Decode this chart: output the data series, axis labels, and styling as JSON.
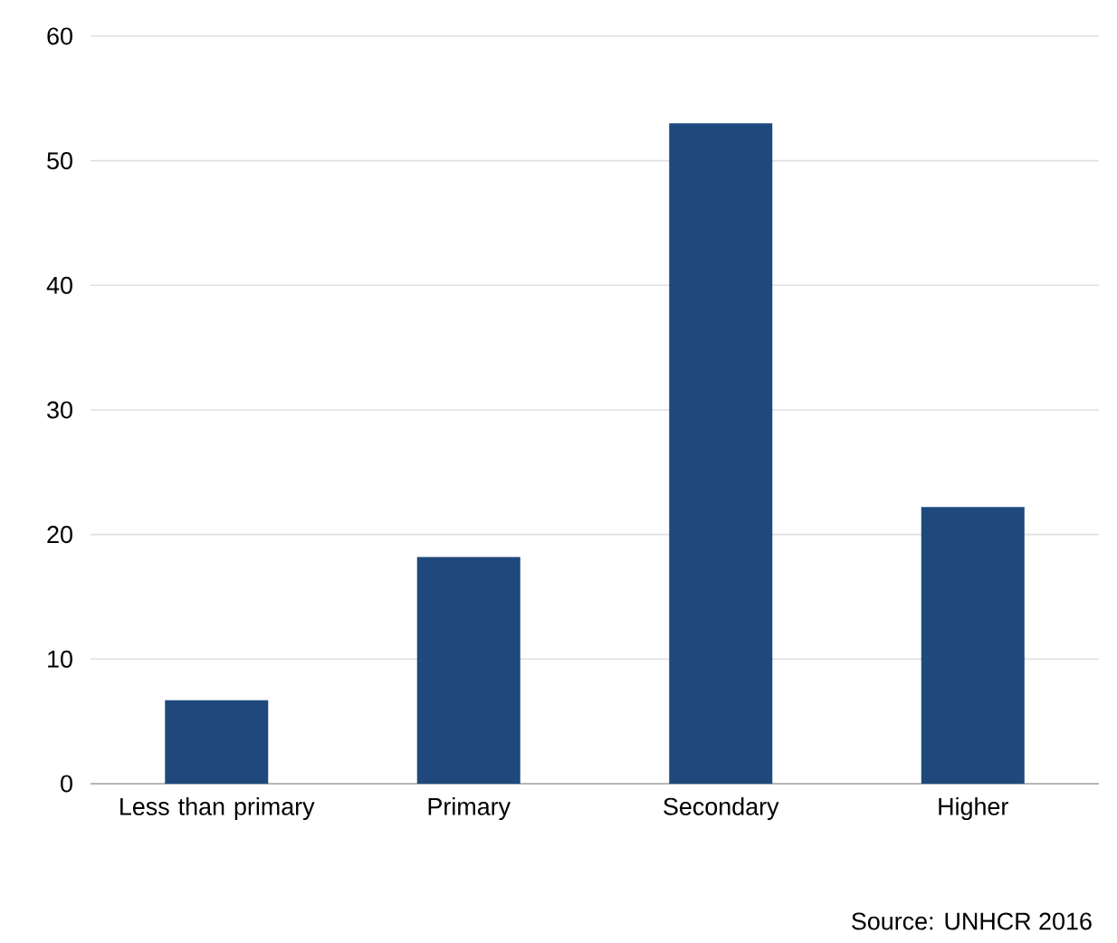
{
  "chart_data": {
    "type": "bar",
    "categories": [
      "Less than primary",
      "Primary",
      "Secondary",
      "Higher"
    ],
    "values": [
      6.7,
      18.2,
      53.0,
      22.2
    ],
    "color": "#1f497d",
    "ylim": [
      0,
      60
    ],
    "yticks": [
      0,
      10,
      20,
      30,
      40,
      50,
      60
    ],
    "grid": "y",
    "annotations": [
      "Source: UNHCR 2016"
    ]
  }
}
